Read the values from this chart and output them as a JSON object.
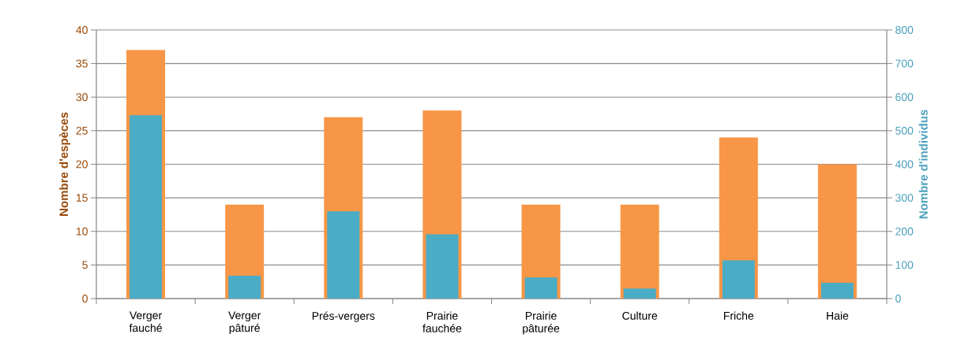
{
  "chart_data": {
    "type": "bar",
    "ylabel": "Nombre d'espèces",
    "y2label": "Nombre d'individus",
    "categories": [
      "Verger fauché",
      "Verger pâturé",
      "Prés-vergers",
      "Prairie fauchée",
      "Prairie pâturée",
      "Culture",
      "Friche",
      "Haie"
    ],
    "series": [
      {
        "color": "#f79646",
        "values": [
          37,
          14,
          27,
          28,
          14,
          14,
          24,
          20
        ]
      },
      {
        "color": "#4bacc6",
        "axis": "y2",
        "values": [
          546,
          68,
          260,
          191,
          63,
          30,
          114,
          47
        ]
      }
    ],
    "ylim": [
      0,
      40
    ],
    "yticks": [
      0,
      5,
      10,
      15,
      20,
      25,
      30,
      35,
      40
    ],
    "y2lim": [
      0,
      800
    ],
    "y2ticks": [
      0,
      100,
      200,
      300,
      400,
      500,
      600,
      700,
      800
    ],
    "grid": "y"
  }
}
